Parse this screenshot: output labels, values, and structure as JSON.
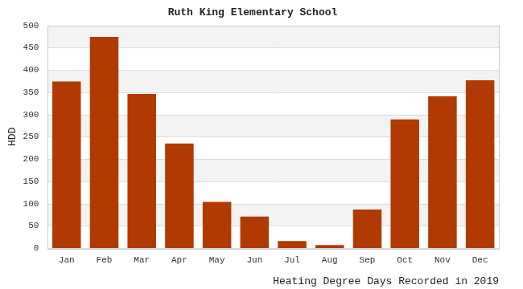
{
  "chart_data": {
    "type": "bar",
    "title": "Ruth King Elementary School",
    "y_label": "HDD",
    "x_label": "Heating Degree Days Recorded in 2019",
    "categories": [
      "Jan",
      "Feb",
      "Mar",
      "Apr",
      "May",
      "Jun",
      "Jul",
      "Aug",
      "Sep",
      "Oct",
      "Nov",
      "Dec"
    ],
    "values": [
      374,
      474,
      346,
      235,
      104,
      71,
      16,
      7,
      87,
      289,
      341,
      377
    ],
    "color": "#b03a02",
    "ylim": [
      0,
      500
    ],
    "yticks": [
      0,
      50,
      100,
      150,
      200,
      250,
      300,
      350,
      400,
      450,
      500
    ],
    "grid": true
  }
}
